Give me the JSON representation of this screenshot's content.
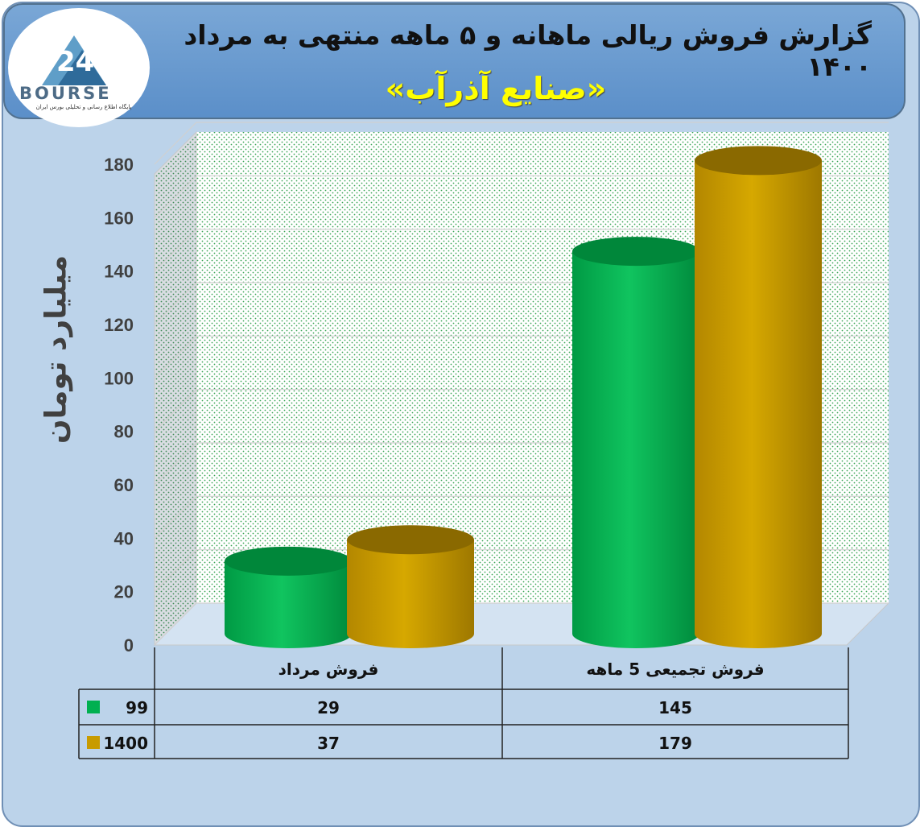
{
  "header": {
    "title": "گزارش فروش ریالی ماهانه و ۵ ماهه منتهی به مرداد ۱۴۰۰",
    "subtitle": "«صنایع آذرآب»"
  },
  "logo": {
    "text": "BOURSE",
    "subtitle": "پایگاه اطلاع رسانی و تحلیلی بورس ایران"
  },
  "colors": {
    "series_99": "#00b050",
    "series_1400": "#c89b00",
    "background": "#bcd3ea",
    "header": "#5b8fc9"
  },
  "chart_data": {
    "type": "bar",
    "ylabel": "میلیارد تومان",
    "ylim": [
      0,
      180
    ],
    "yticks": [
      0,
      20,
      40,
      60,
      80,
      100,
      120,
      140,
      160,
      180
    ],
    "grid": true,
    "categories": [
      "فروش مرداد",
      "فروش تجمیعی 5  ماهه"
    ],
    "series": [
      {
        "name": "99",
        "values": [
          29,
          145
        ],
        "color": "#00b050"
      },
      {
        "name": "1400",
        "values": [
          37,
          179
        ],
        "color": "#c89b00"
      }
    ],
    "data_table": true
  }
}
